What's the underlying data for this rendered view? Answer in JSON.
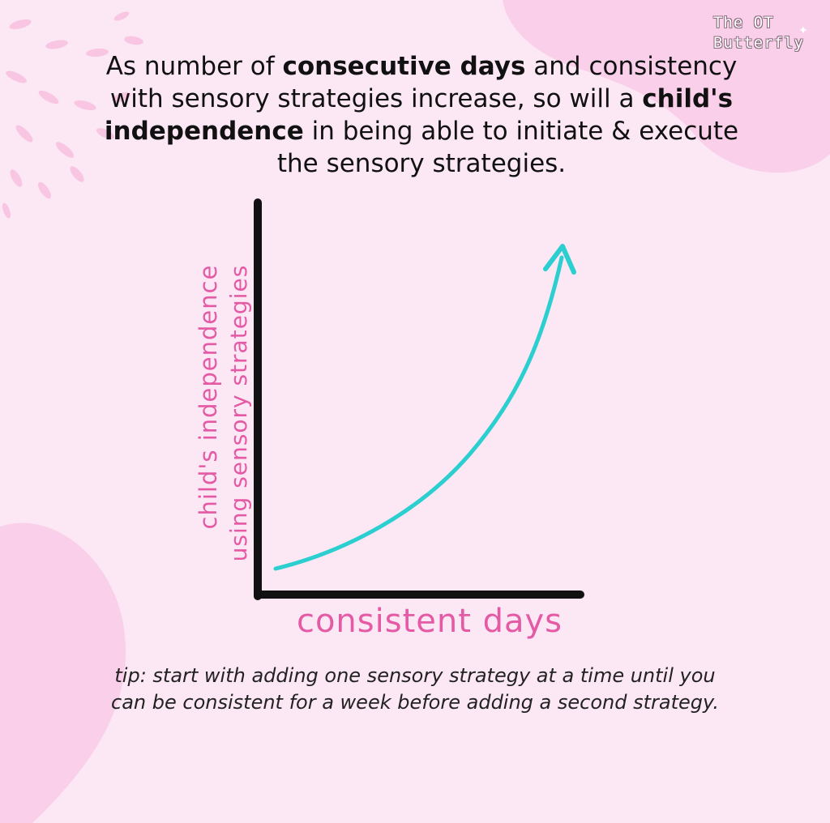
{
  "brand": {
    "line1": "The OT",
    "line2": "Butterfly"
  },
  "headline": {
    "part1": "As number of ",
    "bold1": "consecutive days",
    "part2": " and consistency with sensory strategies increase, so will a ",
    "bold2": "child's independence",
    "part3": " in being able to initiate & execute the sensory strategies."
  },
  "chart_data": {
    "type": "line",
    "x_label": "consistent days",
    "y_label_line1": "child's independence",
    "y_label_line2": "using sensory strategies",
    "trend": "increasing",
    "series_color": "#2ccfd0",
    "axis_color": "#111111",
    "label_color": "#e45aa5"
  },
  "tip": "tip: start with adding one sensory strategy at a time until you can be consistent for a week before adding a second strategy.",
  "colors": {
    "background": "#fce7f5",
    "blob": "#f9cfea",
    "text": "#111111"
  }
}
